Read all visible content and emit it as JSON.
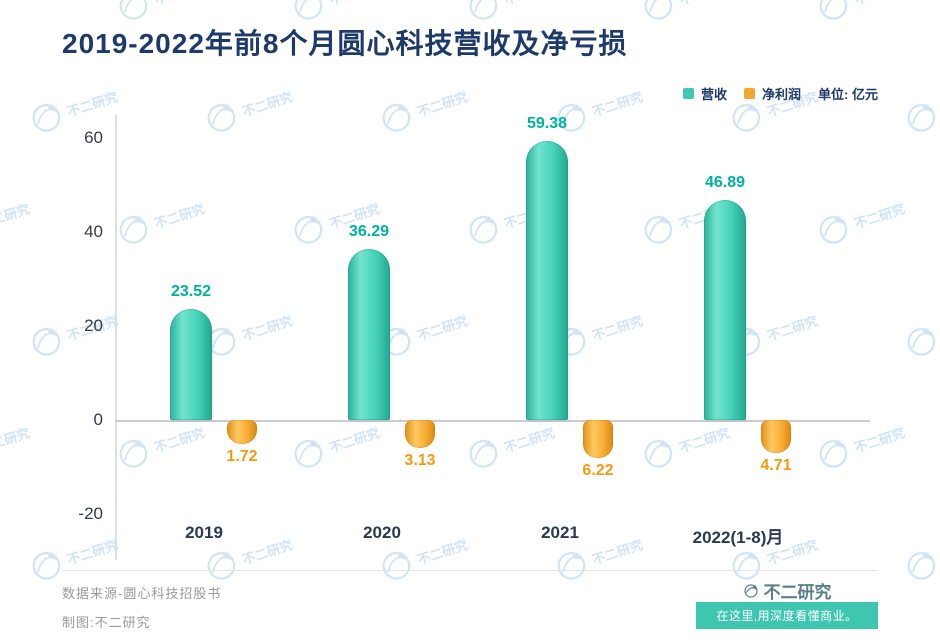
{
  "title": "2019-2022年前8个月圆心科技营收及净亏损",
  "legend": {
    "unit_label": "单位: 亿元"
  },
  "chart_data": {
    "type": "bar",
    "title": "2019-2022年前8个月圆心科技营收及净亏损",
    "unit": "亿元",
    "categories": [
      "2019",
      "2020",
      "2021",
      "2022(1-8)月"
    ],
    "series": [
      {
        "name": "营收",
        "color": "#3fc9b1",
        "values": [
          23.52,
          36.29,
          59.38,
          46.89
        ]
      },
      {
        "name": "净利润",
        "color": "#f5a62d",
        "values": [
          -1.72,
          -3.13,
          -6.22,
          -4.71
        ],
        "value_labels": [
          "1.72",
          "3.13",
          "6.22",
          "4.71"
        ]
      }
    ],
    "yticks": [
      60,
      40,
      20,
      0,
      -20
    ],
    "ylim": [
      -25,
      65
    ],
    "grid": false,
    "legend_position": "top-right",
    "accent_colors": {
      "revenue": "#3fc9b1",
      "profit": "#f5a62d",
      "title_navy": "#1d3a6b"
    }
  },
  "footer": {
    "source": "数据来源-圆心科技招股书",
    "credit": "制图:不二研究",
    "brand": "不二研究",
    "tagline": "在这里,用深度看懂商业。"
  },
  "watermark": {
    "text": "不二研究"
  }
}
